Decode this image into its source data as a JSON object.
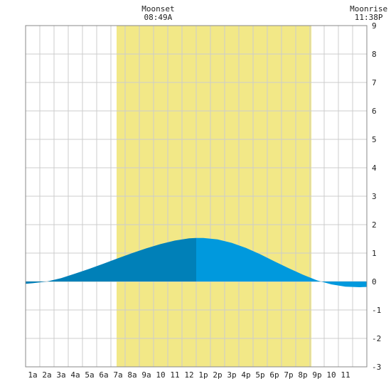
{
  "chart_data": {
    "type": "area",
    "title": "",
    "xlabel": "",
    "ylabel": "",
    "ylim": [
      -3,
      9
    ],
    "xlim": [
      -0.5,
      23.5
    ],
    "x_tick_labels": [
      "1a",
      "2a",
      "3a",
      "4a",
      "5a",
      "6a",
      "7a",
      "8a",
      "9a",
      "10",
      "11",
      "12",
      "1p",
      "2p",
      "3p",
      "4p",
      "5p",
      "6p",
      "7p",
      "8p",
      "9p",
      "10",
      "11"
    ],
    "y_tick_labels": [
      "-3",
      "-2",
      "-1",
      "0",
      "1",
      "2",
      "3",
      "4",
      "5",
      "6",
      "7",
      "8",
      "9"
    ],
    "grid": true,
    "daylight_span_hours": [
      5.9,
      19.6
    ],
    "annotations": [
      {
        "title": "Moonset",
        "time": "08:49A",
        "x": 8.82
      },
      {
        "title": "Moonrise",
        "time": "11:38P",
        "x": 23.63
      }
    ],
    "series": [
      {
        "x": [
          -0.5,
          0,
          1,
          2,
          3,
          4,
          5,
          6,
          7,
          8,
          9,
          10,
          11,
          11.5,
          12,
          13,
          14,
          15,
          16,
          17,
          18,
          19,
          20,
          21,
          22,
          23,
          23.5
        ],
        "values": [
          -0.08,
          -0.06,
          0.0,
          0.12,
          0.28,
          0.45,
          0.63,
          0.82,
          1.0,
          1.17,
          1.32,
          1.44,
          1.52,
          1.53,
          1.53,
          1.48,
          1.36,
          1.18,
          0.96,
          0.71,
          0.47,
          0.24,
          0.04,
          -0.1,
          -0.18,
          -0.2,
          -0.19
        ]
      }
    ],
    "colors": {
      "daylight": "#f2e887",
      "past_fill": "#0080b8",
      "future_fill": "#0099dd",
      "grid": "#cccccc",
      "border": "#888888"
    },
    "split_x": 11.5
  }
}
